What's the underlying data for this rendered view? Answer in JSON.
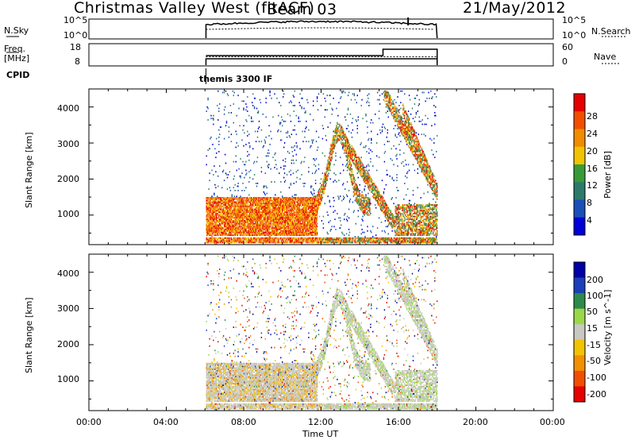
{
  "header": {
    "radar": "Christmas Valley West (fitACF)",
    "beam": "Beam 03",
    "date": "21/May/2012"
  },
  "strip1": {
    "left_label": "N.Sky",
    "left_ticks": [
      "10^5",
      "10^0"
    ],
    "right_ticks": [
      "10^5",
      "10^0"
    ],
    "right_label": "N.Search"
  },
  "strip2": {
    "left_label_1": "Freq.",
    "left_label_2": "[MHz]",
    "left_ticks": [
      "18",
      "8"
    ],
    "right_ticks": [
      "60",
      "0"
    ],
    "right_label": "Nave"
  },
  "cpid": {
    "label": "CPID",
    "mode": "themis 3300 IF"
  },
  "chart_data": [
    {
      "type": "heatmap",
      "ylabel": "Slant Range [km]",
      "xlabel": "",
      "y_ticks": [
        "1000",
        "2000",
        "3000",
        "4000"
      ],
      "ylim": [
        180,
        4500
      ],
      "colorbar_label": "Power [dB]",
      "colorbar_ticks": [
        "4",
        "8",
        "12",
        "16",
        "20",
        "24",
        "28"
      ],
      "colorbar_range": [
        0,
        30
      ],
      "colors": [
        "#0000d8",
        "#1a4fb8",
        "#2e7a6a",
        "#3a9a3a",
        "#f2c300",
        "#f28c00",
        "#f24e00",
        "#e60000"
      ],
      "data_window_hours": [
        6.05,
        18.0
      ]
    },
    {
      "type": "heatmap",
      "ylabel": "Slant Range [km]",
      "xlabel": "Time UT",
      "y_ticks": [
        "1000",
        "2000",
        "3000",
        "4000"
      ],
      "ylim": [
        180,
        4500
      ],
      "colorbar_label": "Velocity [m s^-1]",
      "colorbar_ticks": [
        "200",
        "100",
        "50",
        "15",
        "-15",
        "-50",
        "-100",
        "-200"
      ],
      "colorbar_range": [
        -250,
        250
      ],
      "colors": [
        "#e60000",
        "#f24e00",
        "#f29000",
        "#f2c300",
        "#c8c8c0",
        "#9ad84a",
        "#2e8a4a",
        "#1a3fb8",
        "#0000a8"
      ],
      "data_window_hours": [
        6.05,
        18.0
      ]
    }
  ],
  "time_axis": {
    "label": "Time UT",
    "ticks": [
      "00:00",
      "04:00",
      "08:00",
      "12:00",
      "16:00",
      "20:00",
      "00:00"
    ],
    "range_hours": [
      0,
      24
    ]
  }
}
